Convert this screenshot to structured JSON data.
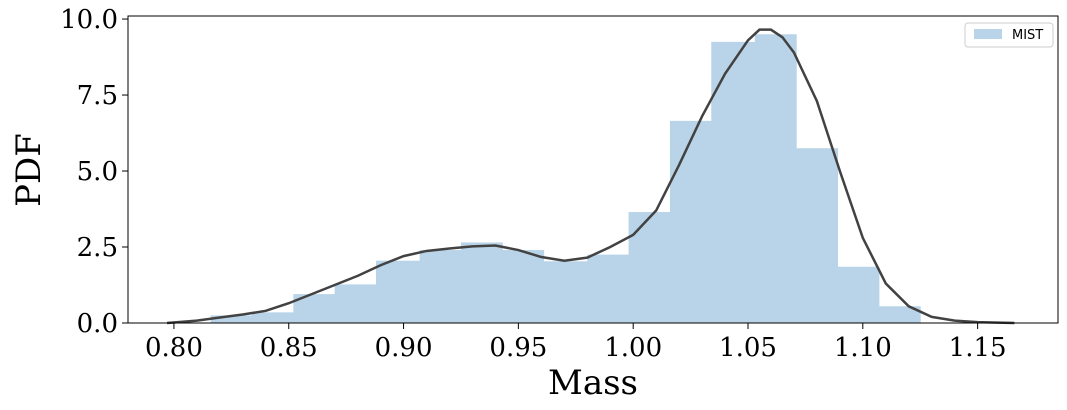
{
  "chart_data": {
    "type": "bar",
    "title": "",
    "xlabel": "Mass",
    "ylabel": "PDF",
    "xlim": [
      0.78,
      1.185
    ],
    "ylim": [
      0,
      10.1
    ],
    "x_ticks": [
      "0.80",
      "0.85",
      "0.90",
      "0.95",
      "1.00",
      "1.05",
      "1.10",
      "1.15"
    ],
    "x_tick_values": [
      0.8,
      0.85,
      0.9,
      0.95,
      1.0,
      1.05,
      1.1,
      1.15
    ],
    "y_ticks": [
      "0.0",
      "2.5",
      "5.0",
      "7.5",
      "10.0"
    ],
    "y_tick_values": [
      0,
      2.5,
      5.0,
      7.5,
      10.0
    ],
    "grid": false,
    "legend": {
      "placement": "top-right",
      "entries": [
        "MIST"
      ]
    },
    "histogram": {
      "name": "MIST",
      "color": "#b9d4e8",
      "bins": [
        {
          "x0": 0.816,
          "x1": 0.834,
          "value": 0.25
        },
        {
          "x0": 0.834,
          "x1": 0.852,
          "value": 0.35
        },
        {
          "x0": 0.852,
          "x1": 0.87,
          "value": 0.95
        },
        {
          "x0": 0.87,
          "x1": 0.888,
          "value": 1.27
        },
        {
          "x0": 0.888,
          "x1": 0.907,
          "value": 2.05
        },
        {
          "x0": 0.907,
          "x1": 0.925,
          "value": 2.4
        },
        {
          "x0": 0.925,
          "x1": 0.943,
          "value": 2.65
        },
        {
          "x0": 0.943,
          "x1": 0.961,
          "value": 2.4
        },
        {
          "x0": 0.961,
          "x1": 0.98,
          "value": 2.03
        },
        {
          "x0": 0.98,
          "x1": 0.998,
          "value": 2.25
        },
        {
          "x0": 0.998,
          "x1": 1.016,
          "value": 3.65
        },
        {
          "x0": 1.016,
          "x1": 1.034,
          "value": 6.65
        },
        {
          "x0": 1.034,
          "x1": 1.053,
          "value": 9.25
        },
        {
          "x0": 1.053,
          "x1": 1.071,
          "value": 9.5
        },
        {
          "x0": 1.071,
          "x1": 1.089,
          "value": 5.75
        },
        {
          "x0": 1.089,
          "x1": 1.107,
          "value": 1.85
        },
        {
          "x0": 1.107,
          "x1": 1.125,
          "value": 0.55
        }
      ]
    },
    "kde": {
      "color": "#424242",
      "x": [
        0.797,
        0.81,
        0.82,
        0.83,
        0.84,
        0.85,
        0.86,
        0.87,
        0.88,
        0.89,
        0.9,
        0.91,
        0.92,
        0.93,
        0.94,
        0.95,
        0.96,
        0.97,
        0.98,
        0.99,
        1.0,
        1.01,
        1.02,
        1.03,
        1.04,
        1.05,
        1.055,
        1.06,
        1.065,
        1.07,
        1.08,
        1.09,
        1.1,
        1.11,
        1.12,
        1.13,
        1.14,
        1.15,
        1.166
      ],
      "y": [
        0.0,
        0.08,
        0.18,
        0.28,
        0.4,
        0.65,
        0.95,
        1.25,
        1.55,
        1.9,
        2.2,
        2.37,
        2.45,
        2.52,
        2.55,
        2.4,
        2.17,
        2.05,
        2.15,
        2.5,
        2.9,
        3.7,
        5.2,
        6.8,
        8.2,
        9.3,
        9.65,
        9.65,
        9.4,
        8.9,
        7.3,
        5.0,
        2.8,
        1.3,
        0.55,
        0.2,
        0.08,
        0.03,
        0.0
      ]
    }
  }
}
